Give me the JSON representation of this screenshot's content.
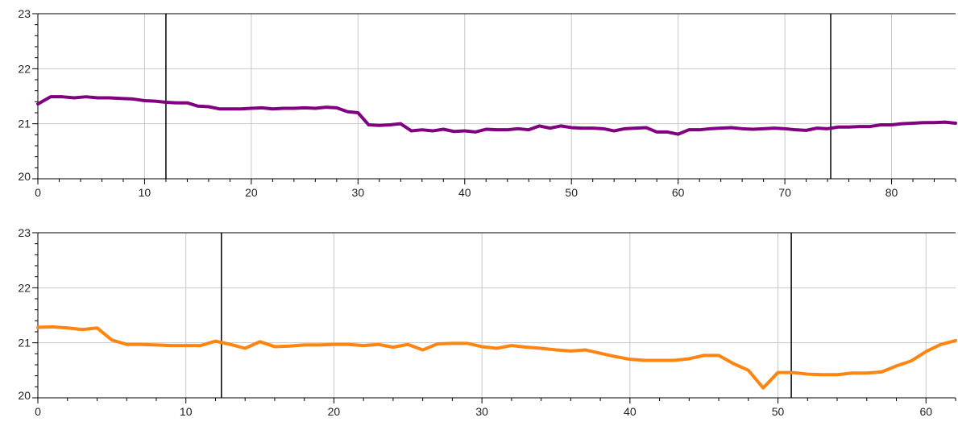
{
  "chart_data": [
    {
      "type": "line",
      "xlim": [
        0,
        86
      ],
      "ylim": [
        20,
        23
      ],
      "grid": true,
      "legend": "none",
      "x_ticks": [
        0,
        10,
        20,
        30,
        40,
        50,
        60,
        70,
        80
      ],
      "y_ticks": [
        20,
        21,
        22,
        23
      ],
      "x_tick_labels": [
        "0",
        "10",
        "20",
        "30",
        "40",
        "50",
        "60",
        "70",
        "80"
      ],
      "y_tick_labels": [
        "20",
        "21",
        "22",
        "23"
      ],
      "vertical_markers": [
        12,
        74.3
      ],
      "series": [
        {
          "color": "#800080",
          "x": [
            0,
            1.2,
            2.3,
            3.4,
            4.5,
            5.6,
            6.7,
            7.8,
            8.9,
            10,
            11,
            12,
            13,
            14,
            15,
            16,
            17,
            18,
            19,
            20,
            21,
            22,
            23,
            24,
            25,
            26,
            27,
            28,
            29,
            30,
            31,
            32,
            33,
            34,
            35,
            36,
            37,
            38,
            39,
            40,
            41,
            42,
            43,
            44,
            45,
            46,
            47,
            48,
            49,
            50,
            51,
            52,
            53,
            54,
            55,
            56,
            57,
            58,
            59,
            60,
            61,
            62,
            63,
            64,
            65,
            66,
            67,
            68,
            69,
            70,
            71,
            72,
            73,
            74,
            75,
            76,
            77,
            78,
            79,
            80,
            81,
            82,
            83,
            84,
            85,
            86
          ],
          "y": [
            21.36,
            21.49,
            21.49,
            21.47,
            21.49,
            21.47,
            21.47,
            21.46,
            21.45,
            21.42,
            21.41,
            21.39,
            21.38,
            21.38,
            21.32,
            21.31,
            21.27,
            21.27,
            21.27,
            21.28,
            21.29,
            21.27,
            21.28,
            21.28,
            21.29,
            21.28,
            21.3,
            21.29,
            21.22,
            21.2,
            20.98,
            20.97,
            20.98,
            21.0,
            20.87,
            20.89,
            20.87,
            20.9,
            20.86,
            20.87,
            20.85,
            20.9,
            20.89,
            20.89,
            20.91,
            20.89,
            20.96,
            20.92,
            20.96,
            20.93,
            20.92,
            20.92,
            20.91,
            20.87,
            20.91,
            20.92,
            20.93,
            20.85,
            20.85,
            20.81,
            20.89,
            20.89,
            20.91,
            20.92,
            20.93,
            20.91,
            20.9,
            20.91,
            20.92,
            20.91,
            20.89,
            20.88,
            20.92,
            20.91,
            20.94,
            20.94,
            20.95,
            20.95,
            20.98,
            20.98,
            21.0,
            21.01,
            21.02,
            21.02,
            21.03,
            21.01
          ]
        }
      ]
    },
    {
      "type": "line",
      "xlim": [
        0,
        62
      ],
      "ylim": [
        20,
        23
      ],
      "grid": true,
      "legend": "none",
      "x_ticks": [
        0,
        10,
        20,
        30,
        40,
        50,
        60
      ],
      "y_ticks": [
        20,
        21,
        22,
        23
      ],
      "x_tick_labels": [
        "0",
        "10",
        "20",
        "30",
        "40",
        "50",
        "60"
      ],
      "y_tick_labels": [
        "20",
        "21",
        "22",
        "23"
      ],
      "vertical_markers": [
        12.4,
        50.9
      ],
      "series": [
        {
          "color": "#ff8410",
          "x": [
            0,
            1,
            2,
            3,
            4,
            5,
            6,
            7,
            8,
            9,
            10,
            11,
            12,
            13,
            14,
            15,
            16,
            17,
            18,
            19,
            20,
            21,
            22,
            23,
            24,
            25,
            26,
            27,
            28,
            29,
            30,
            31,
            32,
            33,
            34,
            35,
            36,
            37,
            38,
            39,
            40,
            41,
            42,
            43,
            44,
            45,
            46,
            47,
            48,
            49,
            50,
            51,
            52,
            53,
            54,
            55,
            56,
            57,
            58,
            59,
            60,
            61,
            62
          ],
          "y": [
            21.28,
            21.29,
            21.27,
            21.24,
            21.27,
            21.05,
            20.97,
            20.97,
            20.96,
            20.95,
            20.95,
            20.95,
            21.03,
            20.97,
            20.9,
            21.02,
            20.93,
            20.94,
            20.96,
            20.96,
            20.97,
            20.97,
            20.95,
            20.97,
            20.92,
            20.97,
            20.87,
            20.98,
            20.99,
            20.99,
            20.93,
            20.9,
            20.95,
            20.92,
            20.9,
            20.87,
            20.85,
            20.87,
            20.81,
            20.75,
            20.7,
            20.68,
            20.68,
            20.68,
            20.71,
            20.77,
            20.77,
            20.62,
            20.5,
            20.18,
            20.46,
            20.46,
            20.43,
            20.42,
            20.42,
            20.45,
            20.45,
            20.47,
            20.58,
            20.67,
            20.84,
            20.97,
            21.04
          ]
        }
      ]
    }
  ]
}
